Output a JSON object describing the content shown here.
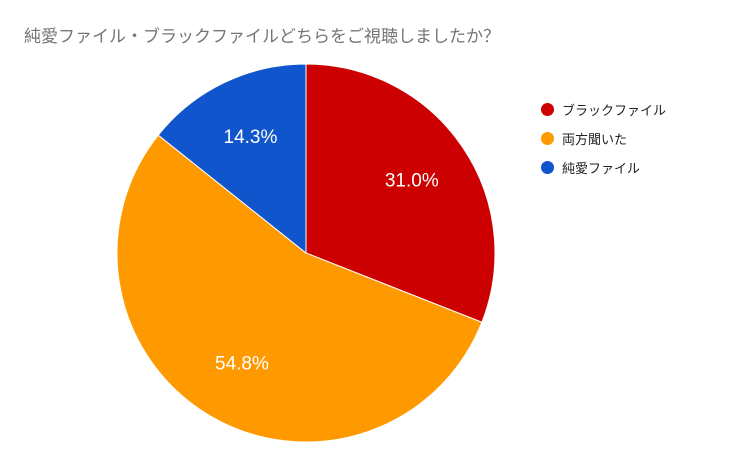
{
  "chart_data": {
    "type": "pie",
    "title": "純愛ファイル・ブラックファイルどちらをご視聴しましたか？",
    "slices": [
      {
        "label": "ブラックファイル",
        "value": 31.0,
        "display": "31.0%",
        "color": "#cc0000"
      },
      {
        "label": "両方聞いた",
        "value": 54.8,
        "display": "54.8%",
        "color": "#ff9900"
      },
      {
        "label": "純愛ファイル",
        "value": 14.3,
        "display": "14.3%",
        "color": "#1155cc"
      }
    ],
    "legend_position": "right",
    "start_angle": "top",
    "direction": "clockwise"
  }
}
